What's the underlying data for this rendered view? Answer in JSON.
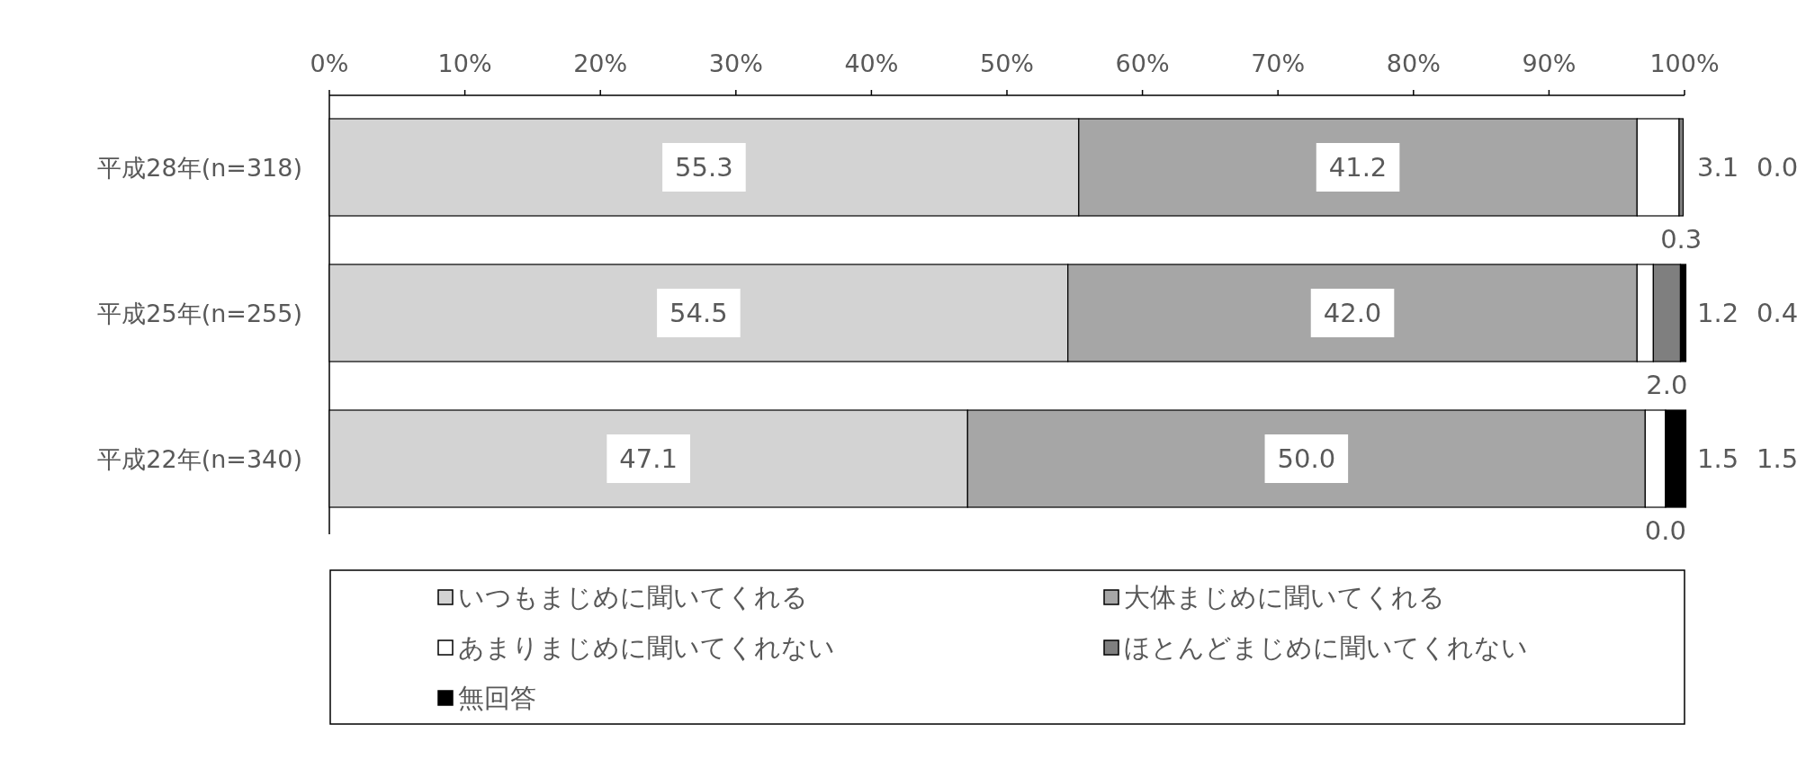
{
  "chart_data": {
    "type": "bar",
    "orientation": "horizontal",
    "stacked": true,
    "legend": "bottom",
    "categories": [
      "平成28年(n=318)",
      "平成25年(n=255)",
      "平成22年(n=340)"
    ],
    "xlim": [
      0,
      100
    ],
    "xticks": [
      {
        "value": 0,
        "label": "0%"
      },
      {
        "value": 10,
        "label": "10%"
      },
      {
        "value": 20,
        "label": "20%"
      },
      {
        "value": 30,
        "label": "30%"
      },
      {
        "value": 40,
        "label": "40%"
      },
      {
        "value": 50,
        "label": "50%"
      },
      {
        "value": 60,
        "label": "60%"
      },
      {
        "value": 70,
        "label": "70%"
      },
      {
        "value": 80,
        "label": "80%"
      },
      {
        "value": 90,
        "label": "90%"
      },
      {
        "value": 100,
        "label": "100%"
      }
    ],
    "series": [
      {
        "name": "いつもまじめに聞いてくれる",
        "color": "#d3d3d3",
        "values": [
          55.3,
          54.5,
          47.1
        ],
        "value_labels": [
          "55.3",
          "54.5",
          "47.1"
        ]
      },
      {
        "name": "大体まじめに聞いてくれる",
        "color": "#a6a6a6",
        "values": [
          41.2,
          42.0,
          50.0
        ],
        "value_labels": [
          "41.2",
          "42.0",
          "50.0"
        ]
      },
      {
        "name": "あまりまじめに聞いてくれない",
        "color": "#ffffff",
        "values": [
          3.1,
          1.2,
          1.5
        ],
        "value_labels": [
          "3.1",
          "1.2",
          "1.5"
        ]
      },
      {
        "name": "ほとんどまじめに聞いてくれない",
        "color": "#7f7f7f",
        "values": [
          0.3,
          2.0,
          0.0
        ],
        "value_labels": [
          "0.3",
          "2.0",
          "0.0"
        ]
      },
      {
        "name": "無回答",
        "color": "#000000",
        "values": [
          0.0,
          0.4,
          1.5
        ],
        "value_labels": [
          "0.0",
          "0.4",
          "1.5"
        ]
      }
    ]
  }
}
